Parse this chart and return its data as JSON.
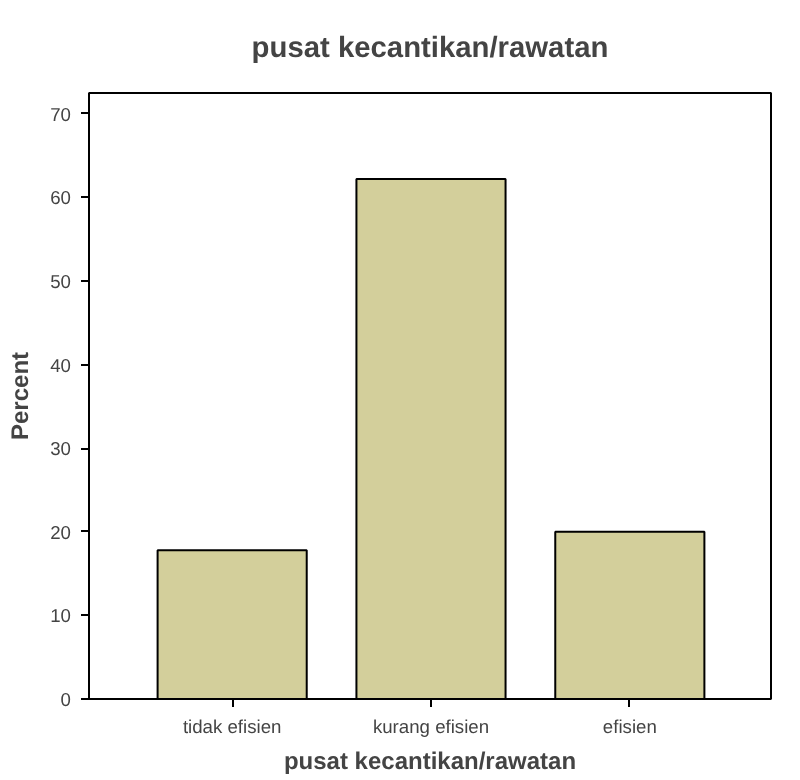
{
  "chart_data": {
    "type": "bar",
    "title": "pusat kecantikan/rawatan",
    "xlabel": "pusat kecantikan/rawatan",
    "ylabel": "Percent",
    "categories": [
      "tidak efisien",
      "kurang efisien",
      "efisien"
    ],
    "values": [
      17.8,
      62.2,
      20.0
    ],
    "color": "#d3cf9b",
    "ylim": [
      0,
      72.5
    ],
    "yticks": [
      0,
      10,
      20,
      30,
      40,
      50,
      60,
      70
    ],
    "grid": false
  }
}
